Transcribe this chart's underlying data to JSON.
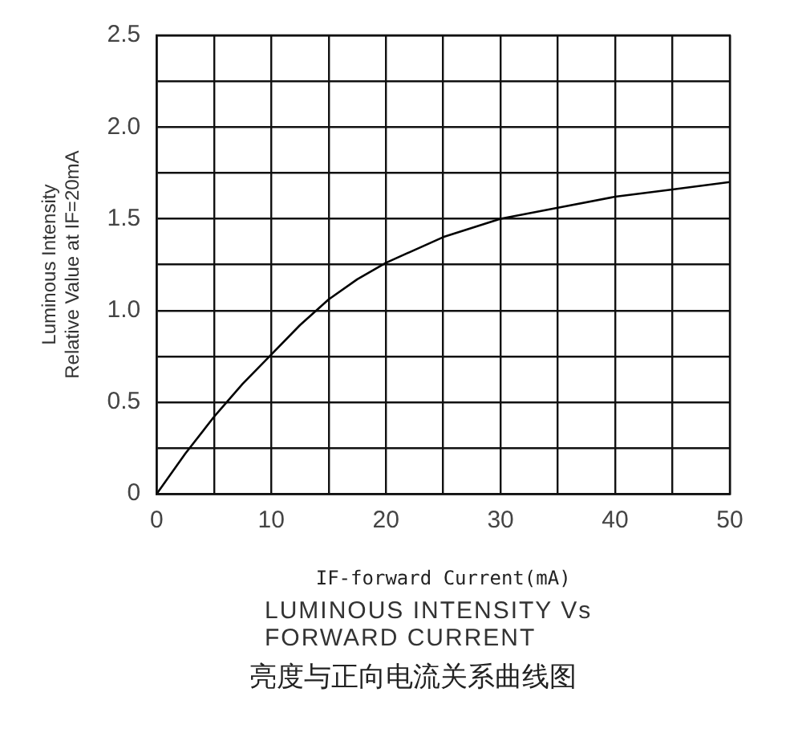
{
  "chart_data": {
    "type": "line",
    "title": "LUMINOUS INTENSITY Vs\nFORWARD CURRENT",
    "subtitle": "亮度与正向电流关系曲线图",
    "xlabel": "IF-forward Current(mA)",
    "ylabel": "Luminous Intensity\nRelative Value at IF=20mA",
    "x": [
      0,
      2.5,
      5,
      7.5,
      10,
      12.5,
      15,
      17.5,
      20,
      25,
      30,
      35,
      40,
      45,
      50
    ],
    "series": [
      {
        "color": "#000000",
        "values": [
          0,
          0.22,
          0.42,
          0.6,
          0.76,
          0.92,
          1.06,
          1.17,
          1.26,
          1.4,
          1.5,
          1.56,
          1.62,
          1.66,
          1.7
        ]
      }
    ],
    "xlim": [
      0,
      50
    ],
    "xticks": [
      0,
      {
        "value": 5,
        "label": null
      },
      10,
      {
        "value": 15,
        "label": null
      },
      20,
      {
        "value": 25,
        "label": null
      },
      30,
      {
        "value": 35,
        "label": null
      },
      40,
      {
        "value": 45,
        "label": null
      },
      50
    ],
    "ylim": [
      0,
      2.5
    ],
    "yticks": [
      {
        "value": 0,
        "label": "0"
      },
      {
        "value": 0.25,
        "label": null
      },
      {
        "value": 0.5,
        "label": "0.5"
      },
      {
        "value": 0.75,
        "label": null
      },
      {
        "value": 1,
        "label": "1.0"
      },
      {
        "value": 1.25,
        "label": null
      },
      {
        "value": 1.5,
        "label": "1.5"
      },
      {
        "value": 1.75,
        "label": null
      },
      {
        "value": 2,
        "label": "2.0"
      },
      {
        "value": 2.25,
        "label": null
      },
      {
        "value": 2.5,
        "label": "2.5"
      }
    ],
    "grid": true,
    "legend": false,
    "marker": "none",
    "line_style": "solid"
  }
}
